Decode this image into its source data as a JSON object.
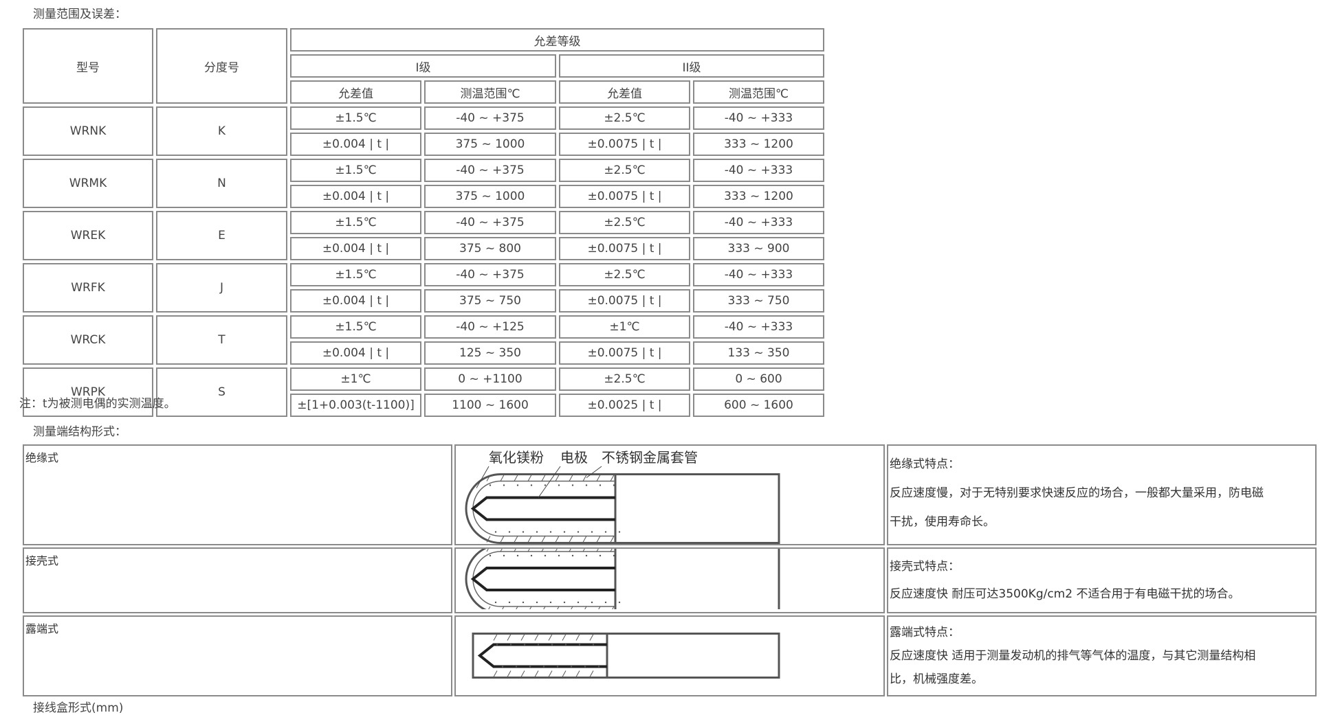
{
  "range_title": "测量范围及误差：",
  "headers": {
    "model": "型号",
    "graduation": "分度号",
    "tolerance_grade": "允差等级",
    "grade1": "I级",
    "grade2": "II级",
    "tol_value": "允差值",
    "temp_range": "测温范围℃"
  },
  "rows": [
    {
      "model": "WRNK",
      "grad": "K",
      "lines": [
        [
          "±1.5℃",
          "-40 ~ +375",
          "±2.5℃",
          "-40 ~ +333"
        ],
        [
          "±0.004 | t |",
          "375 ~ 1000",
          "±0.0075 | t |",
          "333 ~ 1200"
        ]
      ]
    },
    {
      "model": "WRMK",
      "grad": "N",
      "lines": [
        [
          "±1.5℃",
          "-40 ~ +375",
          "±2.5℃",
          "-40 ~ +333"
        ],
        [
          "±0.004 | t |",
          "375 ~ 1000",
          "±0.0075 | t |",
          "333 ~ 1200"
        ]
      ]
    },
    {
      "model": "WREK",
      "grad": "E",
      "lines": [
        [
          "±1.5℃",
          "-40 ~ +375",
          "±2.5℃",
          "-40 ~ +333"
        ],
        [
          "±0.004 | t |",
          "375 ~ 800",
          "±0.0075 | t |",
          "333 ~ 900"
        ]
      ]
    },
    {
      "model": "WRFK",
      "grad": "J",
      "lines": [
        [
          "±1.5℃",
          "-40 ~ +375",
          "±2.5℃",
          "-40 ~ +333"
        ],
        [
          "±0.004 | t |",
          "375 ~ 750",
          "±0.0075 | t |",
          "333 ~ 750"
        ]
      ]
    },
    {
      "model": "WRCK",
      "grad": "T",
      "lines": [
        [
          "±1.5℃",
          "-40 ~ +125",
          "±1℃",
          "-40 ~ +333"
        ],
        [
          "±0.004 | t |",
          "125 ~ 350",
          "±0.0075 | t |",
          "133 ~ 350"
        ]
      ]
    },
    {
      "model": "WRPK",
      "grad": "S",
      "lines": [
        [
          "±1℃",
          "0 ~ +1100",
          "±2.5℃",
          "0 ~ 600"
        ],
        [
          "±[1+0.003(t-1100)]",
          "1100 ~ 1600",
          "±0.0025 | t |",
          "600 ~ 1600"
        ]
      ]
    }
  ],
  "note": "注：t为被测电偶的实测温度。",
  "structure_title": "测量端结构形式：",
  "diagram_labels": {
    "powder": "氧化镁粉",
    "electrode": "电极",
    "sheath": "不锈钢金属套管"
  },
  "structures": [
    {
      "name": "绝缘式",
      "feature_title": "绝缘式特点：",
      "feature_lines": [
        "反应速度慢，对于无特别要求快速反应的场合，一般都大量采用，防电磁",
        "干扰，使用寿命长。"
      ]
    },
    {
      "name": "接壳式",
      "feature_title": "接壳式特点：",
      "feature_lines": [
        "反应速度快 耐压可达3500Kg/cm2  不适合用于有电磁干扰的场合。"
      ]
    },
    {
      "name": "露端式",
      "feature_title": "露端式特点：",
      "feature_lines": [
        "反应速度快   适用于测量发动机的排气等气体的温度，与其它测量结构相",
        "比，机械强度差。"
      ]
    }
  ],
  "junction_title": "接线盒形式(mm)"
}
